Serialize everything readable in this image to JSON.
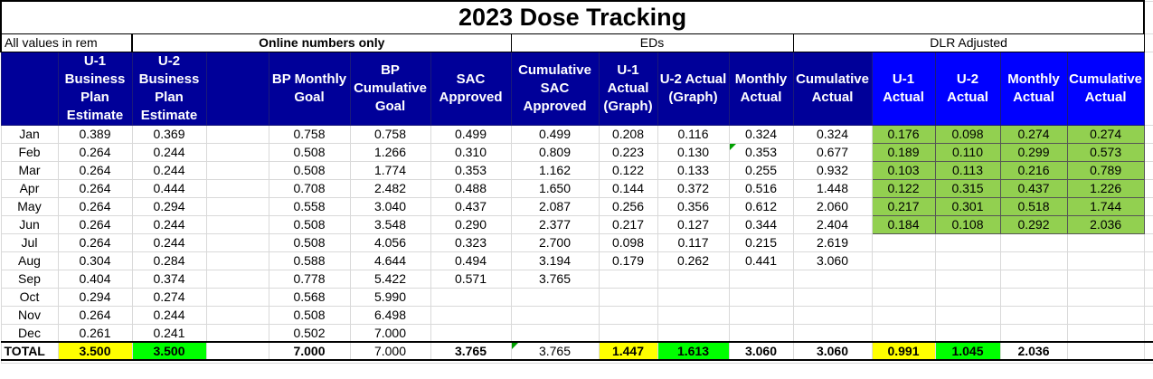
{
  "title": "2023 Dose Tracking",
  "units_note": "All values in rem",
  "groups": {
    "online": "Online numbers only",
    "eds": "EDs",
    "dlr": "DLR Adjusted"
  },
  "headers": {
    "u1_bp": "U-1 Business Plan Estimate",
    "u2_bp": "U-2 Business Plan Estimate",
    "bp_monthly": "BP Monthly Goal",
    "bp_cumulative": "BP Cumulative Goal",
    "sac_approved": "SAC Approved",
    "cum_sac": "Cumulative SAC Approved",
    "u1_actual_graph": "U-1 Actual (Graph)",
    "u2_actual_graph": "U-2 Actual (Graph)",
    "monthly_actual": "Monthly Actual",
    "cumulative_actual": "Cumulative Actual",
    "dlr_u1": "U-1 Actual",
    "dlr_u2": "U-2 Actual",
    "dlr_monthly": "Monthly Actual",
    "dlr_cumulative": "Cumulative Actual"
  },
  "rows": [
    {
      "month": "Jan",
      "u1": "0.389",
      "u2": "0.369",
      "bpm": "0.758",
      "bpc": "0.758",
      "sac": "0.499",
      "csac": "0.499",
      "e1": "0.208",
      "e2": "0.116",
      "em": "0.324",
      "ec": "0.324",
      "d1": "0.176",
      "d2": "0.098",
      "dm": "0.274",
      "dc": "0.274"
    },
    {
      "month": "Feb",
      "u1": "0.264",
      "u2": "0.244",
      "bpm": "0.508",
      "bpc": "1.266",
      "sac": "0.310",
      "csac": "0.809",
      "e1": "0.223",
      "e2": "0.130",
      "em": "0.353",
      "ec": "0.677",
      "d1": "0.189",
      "d2": "0.110",
      "dm": "0.299",
      "dc": "0.573"
    },
    {
      "month": "Mar",
      "u1": "0.264",
      "u2": "0.244",
      "bpm": "0.508",
      "bpc": "1.774",
      "sac": "0.353",
      "csac": "1.162",
      "e1": "0.122",
      "e2": "0.133",
      "em": "0.255",
      "ec": "0.932",
      "d1": "0.103",
      "d2": "0.113",
      "dm": "0.216",
      "dc": "0.789"
    },
    {
      "month": "Apr",
      "u1": "0.264",
      "u2": "0.444",
      "bpm": "0.708",
      "bpc": "2.482",
      "sac": "0.488",
      "csac": "1.650",
      "e1": "0.144",
      "e2": "0.372",
      "em": "0.516",
      "ec": "1.448",
      "d1": "0.122",
      "d2": "0.315",
      "dm": "0.437",
      "dc": "1.226"
    },
    {
      "month": "May",
      "u1": "0.264",
      "u2": "0.294",
      "bpm": "0.558",
      "bpc": "3.040",
      "sac": "0.437",
      "csac": "2.087",
      "e1": "0.256",
      "e2": "0.356",
      "em": "0.612",
      "ec": "2.060",
      "d1": "0.217",
      "d2": "0.301",
      "dm": "0.518",
      "dc": "1.744"
    },
    {
      "month": "Jun",
      "u1": "0.264",
      "u2": "0.244",
      "bpm": "0.508",
      "bpc": "3.548",
      "sac": "0.290",
      "csac": "2.377",
      "e1": "0.217",
      "e2": "0.127",
      "em": "0.344",
      "ec": "2.404",
      "d1": "0.184",
      "d2": "0.108",
      "dm": "0.292",
      "dc": "2.036"
    },
    {
      "month": "Jul",
      "u1": "0.264",
      "u2": "0.244",
      "bpm": "0.508",
      "bpc": "4.056",
      "sac": "0.323",
      "csac": "2.700",
      "e1": "0.098",
      "e2": "0.117",
      "em": "0.215",
      "ec": "2.619",
      "d1": "",
      "d2": "",
      "dm": "",
      "dc": ""
    },
    {
      "month": "Aug",
      "u1": "0.304",
      "u2": "0.284",
      "bpm": "0.588",
      "bpc": "4.644",
      "sac": "0.494",
      "csac": "3.194",
      "e1": "0.179",
      "e2": "0.262",
      "em": "0.441",
      "ec": "3.060",
      "d1": "",
      "d2": "",
      "dm": "",
      "dc": ""
    },
    {
      "month": "Sep",
      "u1": "0.404",
      "u2": "0.374",
      "bpm": "0.778",
      "bpc": "5.422",
      "sac": "0.571",
      "csac": "3.765",
      "e1": "",
      "e2": "",
      "em": "",
      "ec": "",
      "d1": "",
      "d2": "",
      "dm": "",
      "dc": ""
    },
    {
      "month": "Oct",
      "u1": "0.294",
      "u2": "0.274",
      "bpm": "0.568",
      "bpc": "5.990",
      "sac": "",
      "csac": "",
      "e1": "",
      "e2": "",
      "em": "",
      "ec": "",
      "d1": "",
      "d2": "",
      "dm": "",
      "dc": ""
    },
    {
      "month": "Nov",
      "u1": "0.264",
      "u2": "0.244",
      "bpm": "0.508",
      "bpc": "6.498",
      "sac": "",
      "csac": "",
      "e1": "",
      "e2": "",
      "em": "",
      "ec": "",
      "d1": "",
      "d2": "",
      "dm": "",
      "dc": ""
    },
    {
      "month": "Dec",
      "u1": "0.261",
      "u2": "0.241",
      "bpm": "0.502",
      "bpc": "7.000",
      "sac": "",
      "csac": "",
      "e1": "",
      "e2": "",
      "em": "",
      "ec": "",
      "d1": "",
      "d2": "",
      "dm": "",
      "dc": ""
    }
  ],
  "total": {
    "label": "TOTAL",
    "u1": "3.500",
    "u2": "3.500",
    "bpm": "7.000",
    "bpc": "7.000",
    "sac": "3.765",
    "csac": "3.765",
    "e1": "1.447",
    "e2": "1.613",
    "em": "3.060",
    "ec": "3.060",
    "d1": "0.991",
    "d2": "1.045",
    "dm": "2.036",
    "dc": ""
  },
  "colors": {
    "header_navy": "#000099",
    "header_blue": "#0000ff",
    "dlr_green": "#92d050",
    "total_yellow": "#ffff00",
    "total_green": "#00ff00"
  }
}
